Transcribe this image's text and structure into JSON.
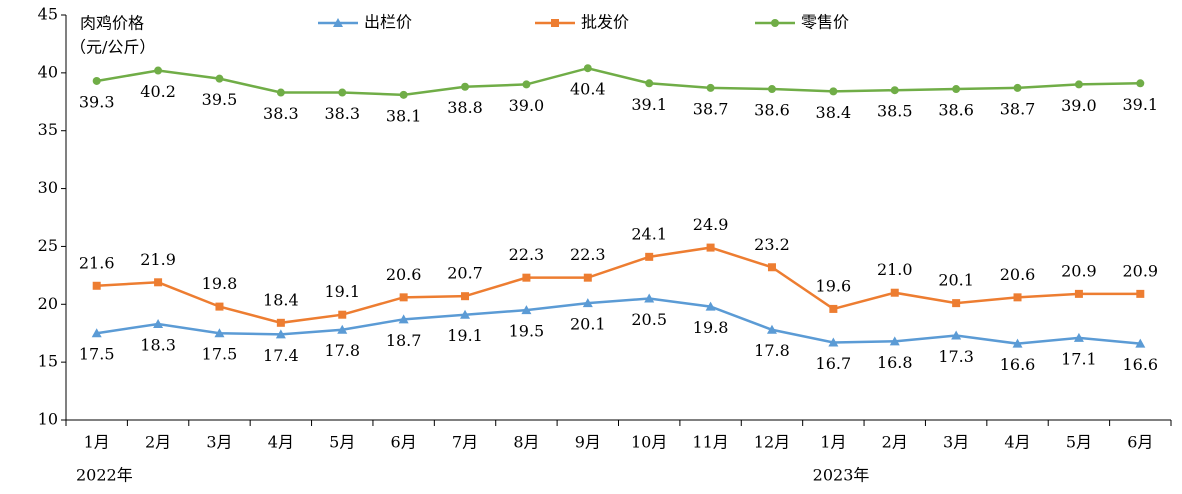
{
  "chart_data": {
    "type": "line",
    "y_label": [
      "肉鸡价格",
      "（元/公斤）"
    ],
    "categories": [
      "1月",
      "2月",
      "3月",
      "4月",
      "5月",
      "6月",
      "7月",
      "8月",
      "9月",
      "10月",
      "11月",
      "12月",
      "1月",
      "2月",
      "3月",
      "4月",
      "5月",
      "6月"
    ],
    "category_groups": [
      "2022年",
      null,
      null,
      null,
      null,
      null,
      null,
      null,
      null,
      null,
      null,
      null,
      "2023年",
      null,
      null,
      null,
      null,
      null
    ],
    "ylim": [
      10,
      45
    ],
    "yticks": [
      10,
      15,
      20,
      25,
      30,
      35,
      40,
      45
    ],
    "grid": false,
    "series": [
      {
        "name": "出栏价",
        "color": "#5b9bd5",
        "marker": "triangle",
        "label_position": "below",
        "values": [
          17.5,
          18.3,
          17.5,
          17.4,
          17.8,
          18.7,
          19.1,
          19.5,
          20.1,
          20.5,
          19.8,
          17.8,
          16.7,
          16.8,
          17.3,
          16.6,
          17.1,
          16.6
        ],
        "value_labels": [
          "17.5",
          "18.3",
          "17.5",
          "17.4",
          "17.8",
          "18.7",
          "19.1",
          "19.5",
          "20.1",
          "20.5",
          "19.8",
          "17.8",
          "16.7",
          "16.8",
          "17.3",
          "16.6",
          "17.1",
          "16.6"
        ]
      },
      {
        "name": "批发价",
        "color": "#ed7d31",
        "marker": "square",
        "label_position": "above",
        "values": [
          21.6,
          21.9,
          19.8,
          18.4,
          19.1,
          20.6,
          20.7,
          22.3,
          22.3,
          24.1,
          24.9,
          23.2,
          19.6,
          21,
          20.1,
          20.6,
          20.9,
          20.9
        ],
        "value_labels": [
          "21.6",
          "21.9",
          "19.8",
          "18.4",
          "19.1",
          "20.6",
          "20.7",
          "22.3",
          "22.3",
          "24.1",
          "24.9",
          "23.2",
          "19.6",
          "21.0",
          "20.1",
          "20.6",
          "20.9",
          "20.9"
        ]
      },
      {
        "name": "零售价",
        "color": "#70ad47",
        "marker": "circle",
        "label_position": "below",
        "values": [
          39.3,
          40.2,
          39.5,
          38.3,
          38.3,
          38.1,
          38.8,
          39,
          40.4,
          39.1,
          38.7,
          38.6,
          38.4,
          38.5,
          38.6,
          38.7,
          39,
          39.1
        ],
        "value_labels": [
          "39.3",
          "40.2",
          "39.5",
          "38.3",
          "38.3",
          "38.1",
          "38.8",
          "39.0",
          "40.4",
          "39.1",
          "38.7",
          "38.6",
          "38.4",
          "38.5",
          "38.6",
          "38.7",
          "39.0",
          "39.1"
        ]
      }
    ]
  }
}
